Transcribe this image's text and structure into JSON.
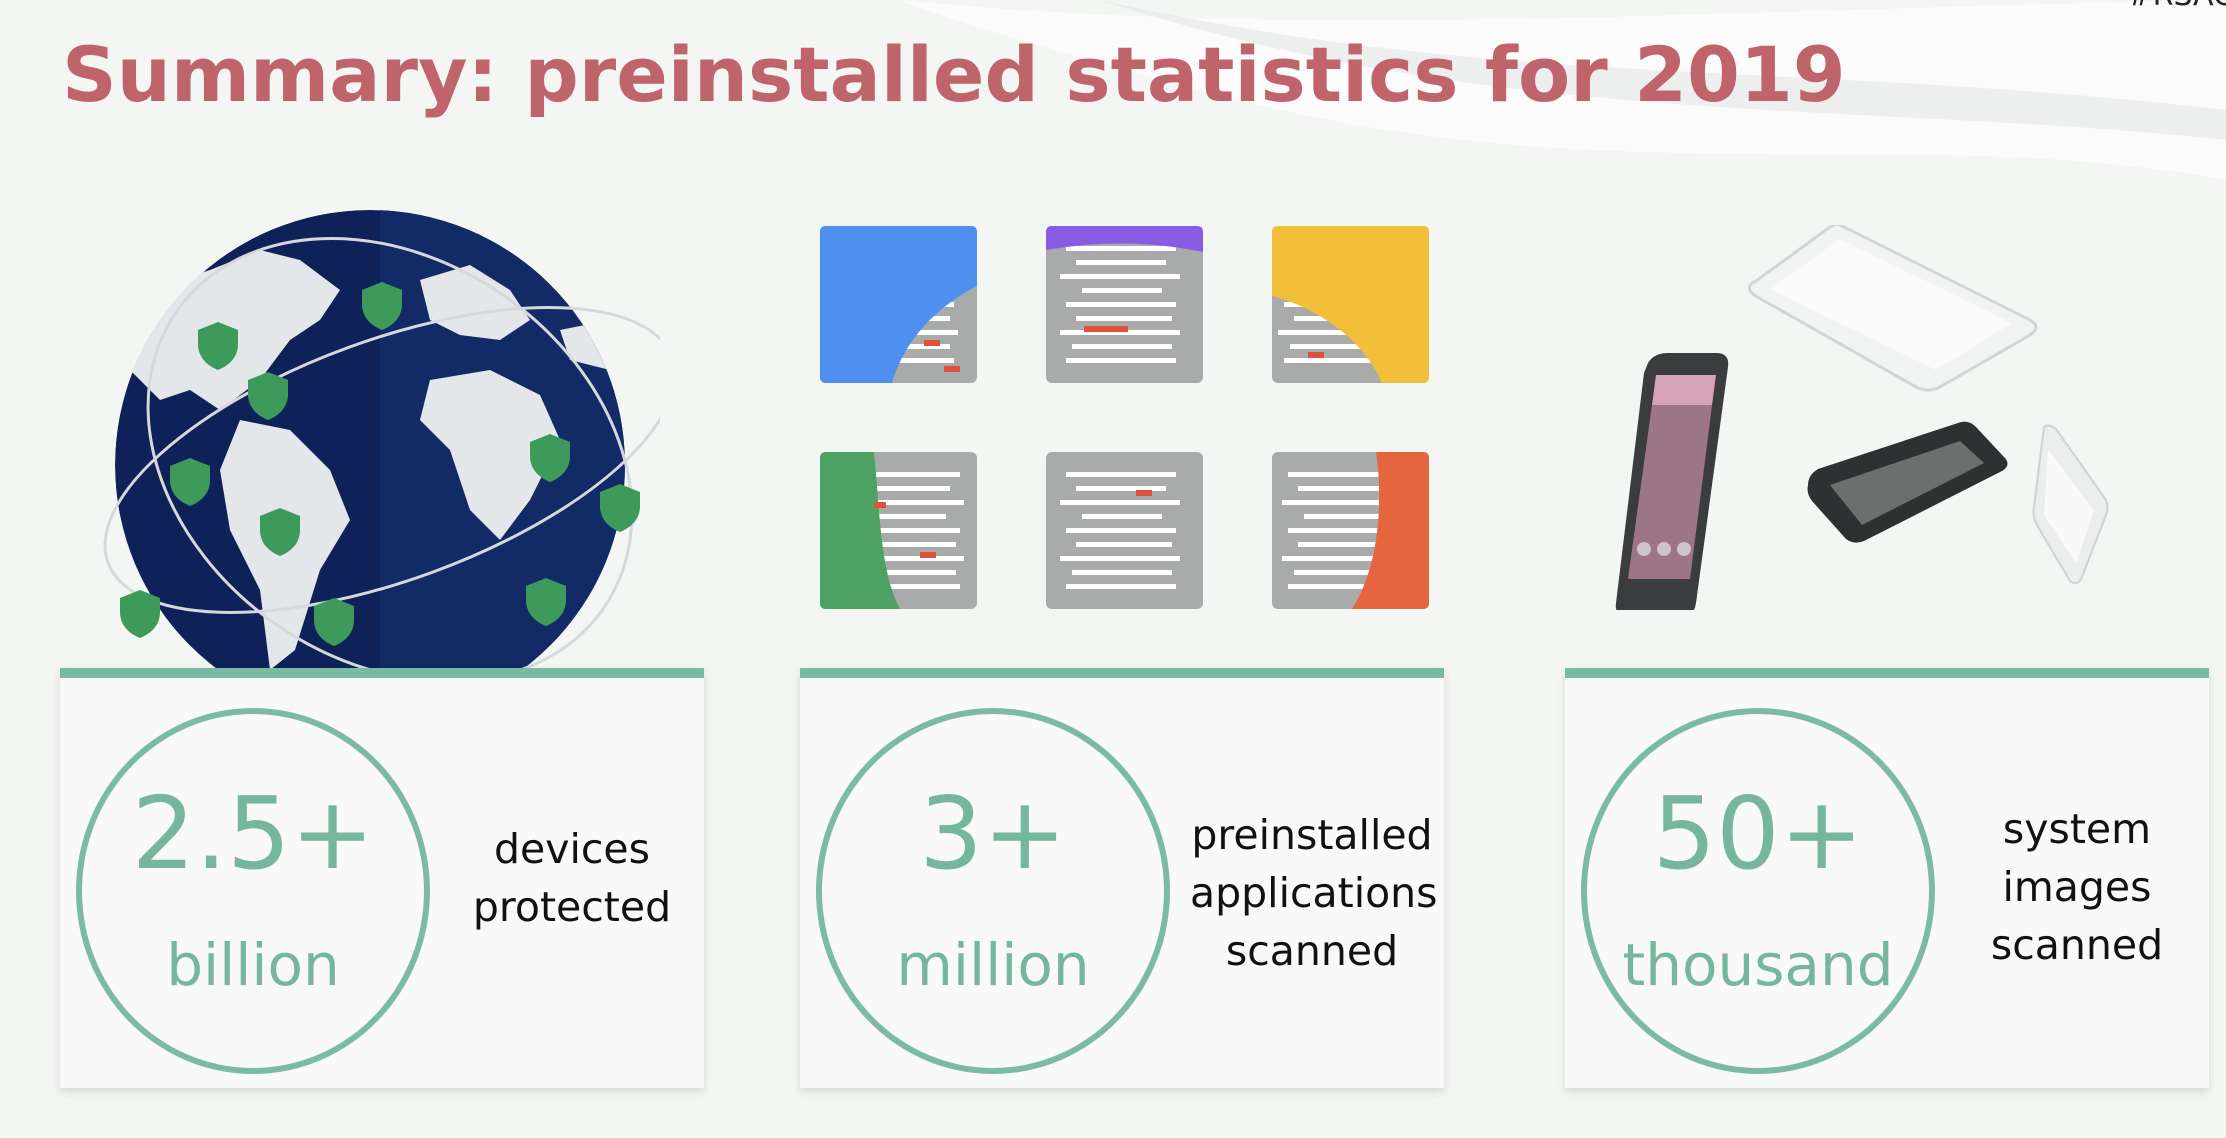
{
  "corner_tag": "#RSAC",
  "title": "Summary: preinstalled statistics for 2019",
  "colors": {
    "title": "#c0646c",
    "accent_green": "#79bba0",
    "stat_text": "#74b79c",
    "globe_navy": "#0e2158",
    "shield_green": "#3e9a5a"
  },
  "illustrations": {
    "left": "globe-with-shields-icon",
    "middle": "app-tiles-icon",
    "right": "android-devices-icon"
  },
  "stats": [
    {
      "value": "2.5+",
      "unit": "billion",
      "desc": [
        "devices",
        "protected"
      ]
    },
    {
      "value": "3+",
      "unit": "million",
      "desc": [
        "preinstalled",
        "applications",
        "scanned"
      ]
    },
    {
      "value": "50+",
      "unit": "thousand",
      "desc": [
        "system",
        "images",
        "scanned"
      ]
    }
  ]
}
